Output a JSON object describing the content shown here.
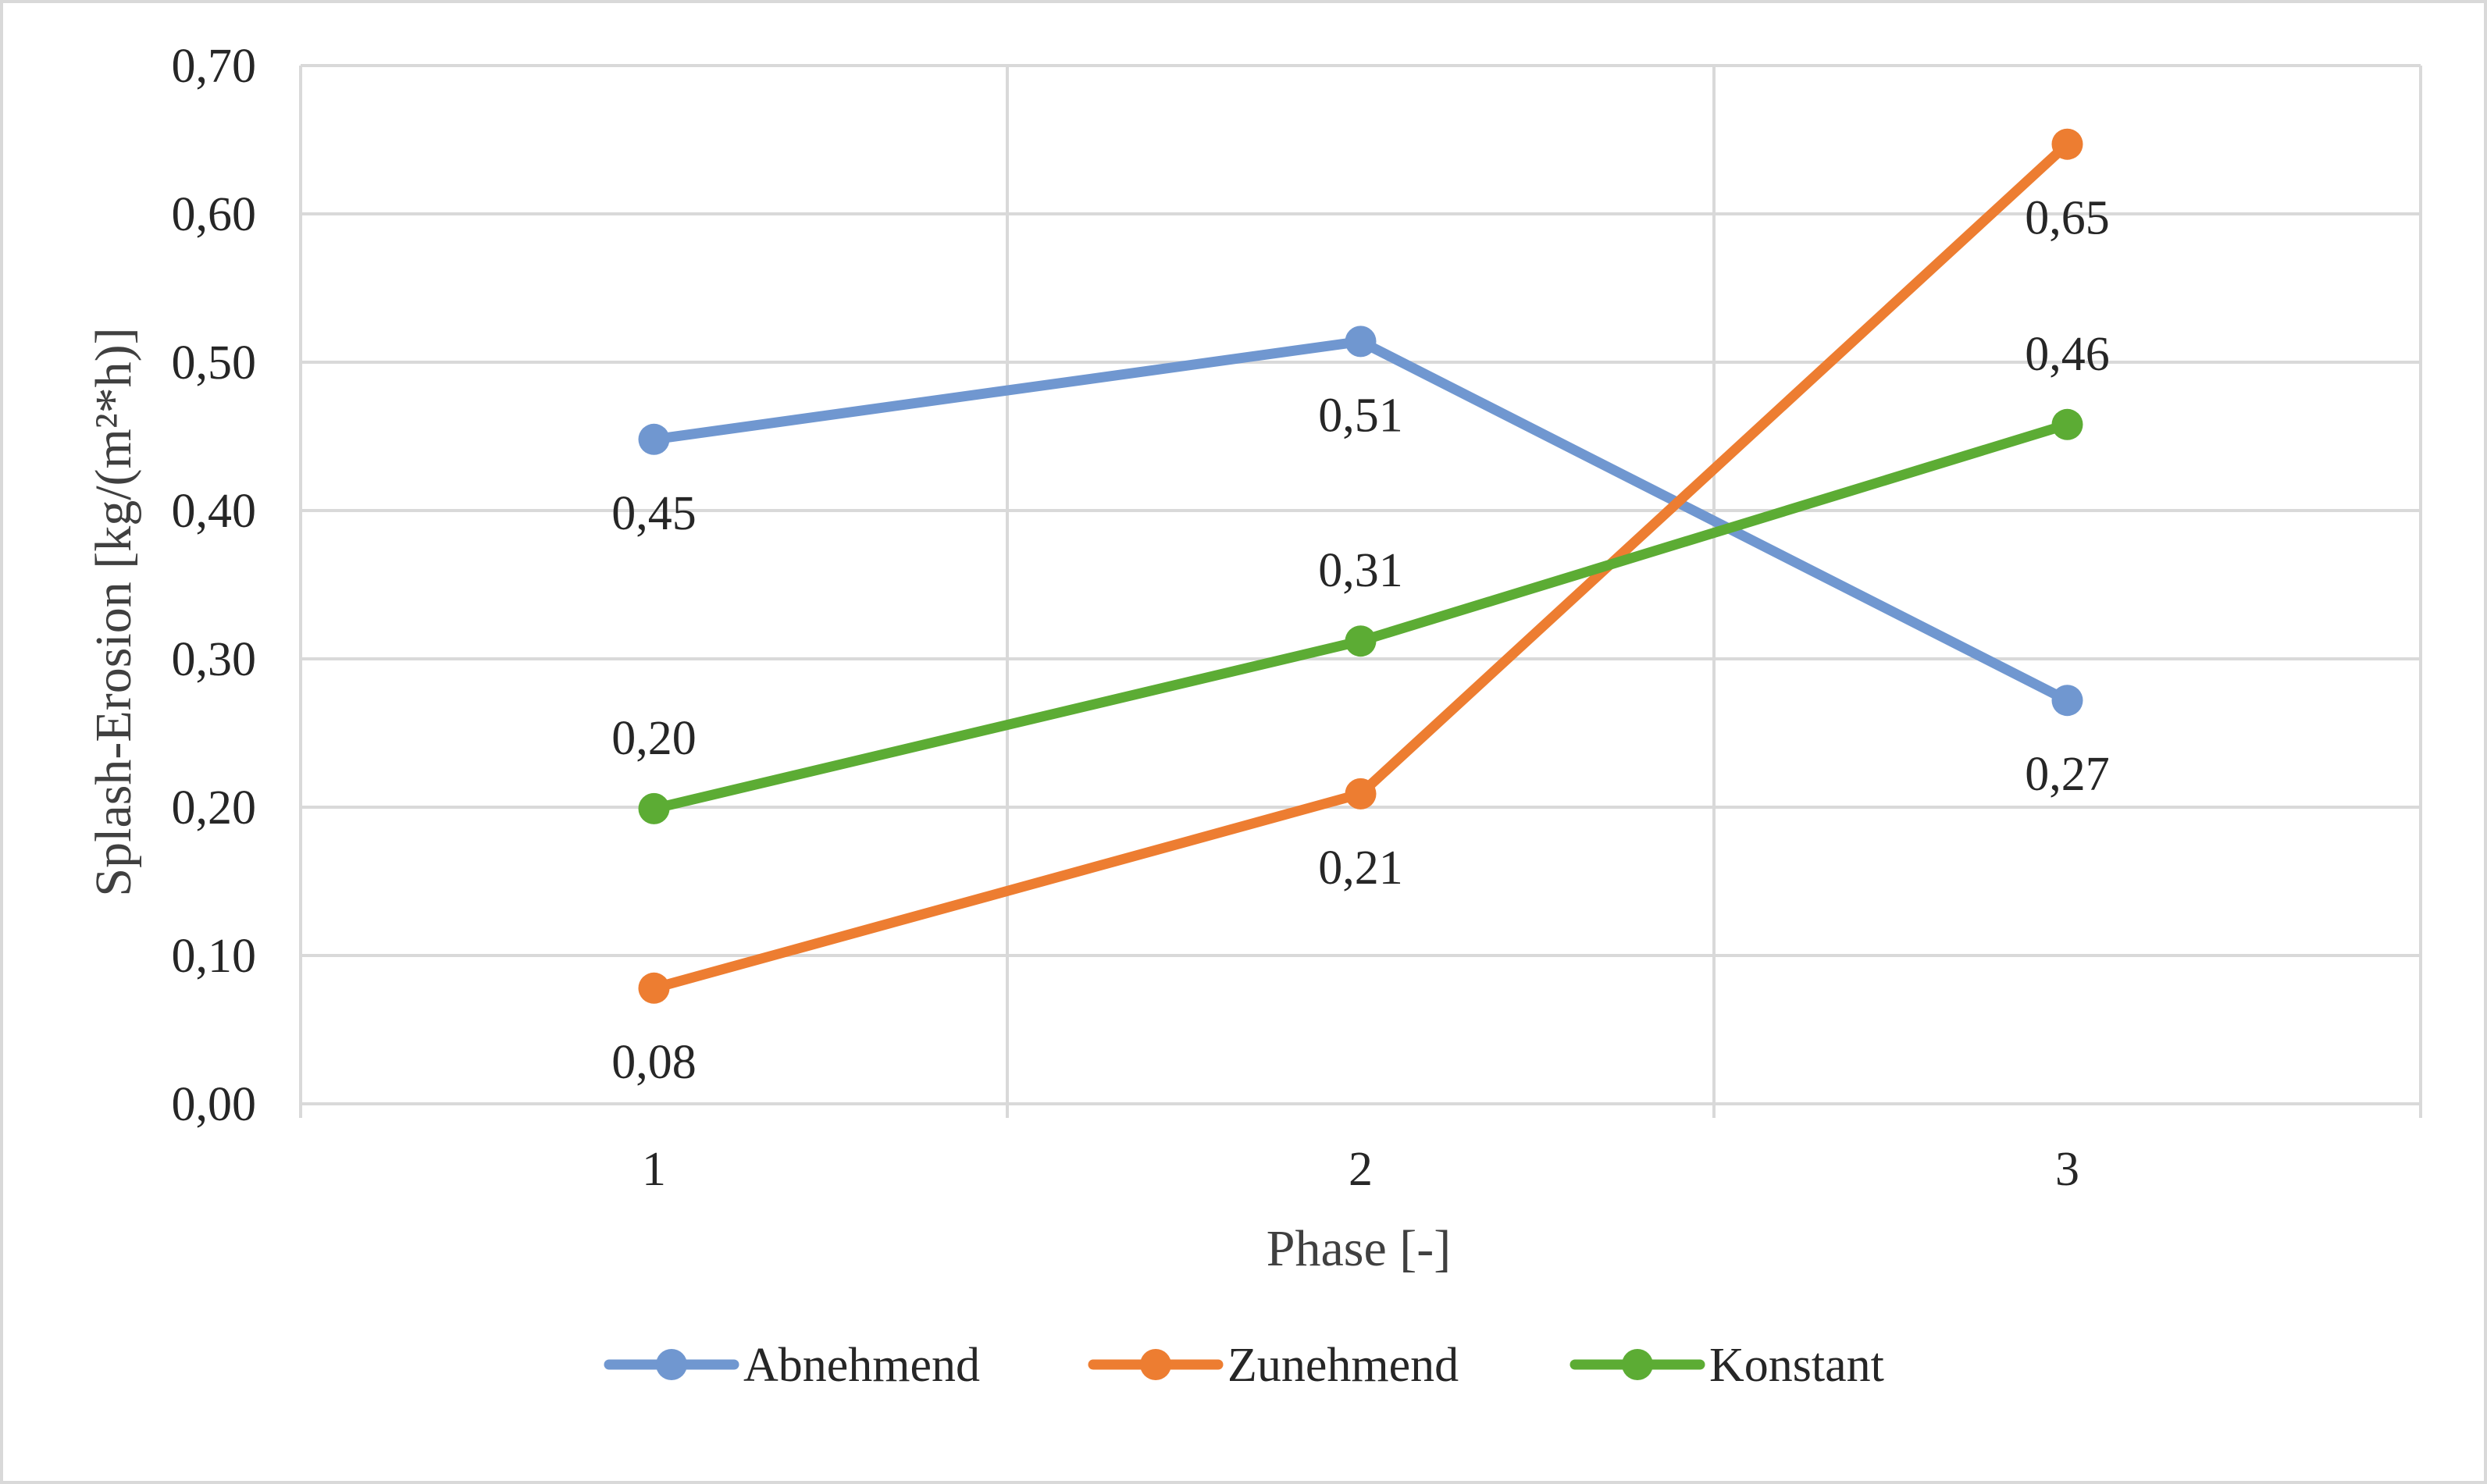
{
  "chart_data": {
    "type": "line",
    "title": "",
    "xlabel": "Phase  [-]",
    "ylabel": "Splash-Erosion [kg/(m²*h)]",
    "categories": [
      "1",
      "2",
      "3"
    ],
    "x": [
      1,
      2,
      3
    ],
    "ylim": [
      0,
      0.7
    ],
    "yticks": [
      0,
      0.1,
      0.2,
      0.3,
      0.4,
      0.5,
      0.6,
      0.7
    ],
    "ytick_labels": [
      "0,00",
      "0,10",
      "0,20",
      "0,30",
      "0,40",
      "0,50",
      "0,60",
      "0,70"
    ],
    "grid": true,
    "legend_position": "bottom",
    "series": [
      {
        "name": "Abnehmend",
        "color": "#7097d0",
        "values": [
          0.448,
          0.514,
          0.272
        ],
        "labels": [
          "0,45",
          "0,51",
          "0,27"
        ],
        "label_side": [
          "below",
          "below",
          "below"
        ]
      },
      {
        "name": "Zunehmend",
        "color": "#ed7d31",
        "values": [
          0.078,
          0.209,
          0.647
        ],
        "labels": [
          "0,08",
          "0,21",
          "0,65"
        ],
        "label_side": [
          "below",
          "below",
          "below"
        ]
      },
      {
        "name": "Konstant",
        "color": "#5cac34",
        "values": [
          0.199,
          0.312,
          0.458
        ],
        "labels": [
          "0,20",
          "0,31",
          "0,46"
        ],
        "label_side": [
          "above",
          "above",
          "above"
        ]
      }
    ]
  }
}
